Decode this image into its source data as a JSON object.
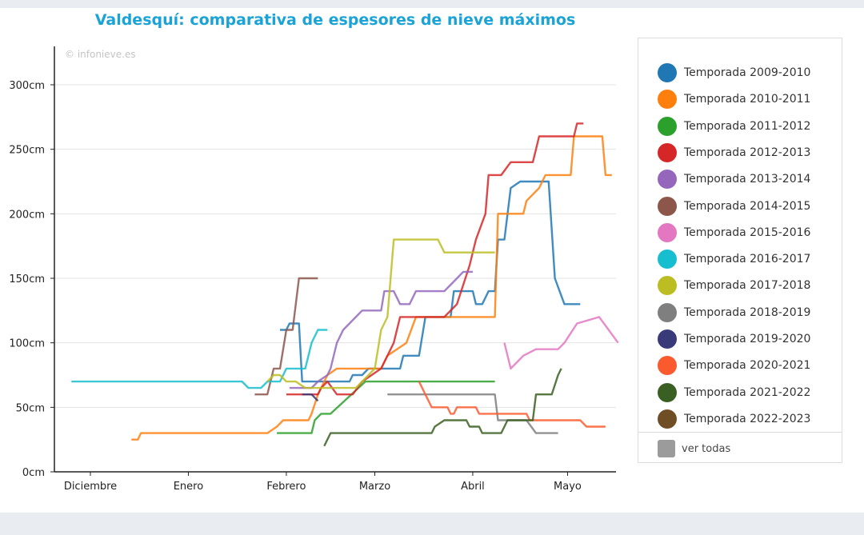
{
  "chart_data": {
    "type": "line",
    "title": "Valdesquí: comparativa de espesores de nieve máximos",
    "watermark": "© infonieve.es",
    "x_tick_labels": [
      "Diciembre",
      "Enero",
      "Febrero",
      "Marzo",
      "Abril",
      "Mayo"
    ],
    "y_tick_labels": [
      "0cm",
      "50cm",
      "100cm",
      "150cm",
      "200cm",
      "250cm",
      "300cm"
    ],
    "ylim": [
      0,
      300
    ],
    "xlim_days": [
      -6,
      150
    ],
    "grid": true,
    "legend_position": "right",
    "show_all_label": "ver todas",
    "series": [
      {
        "name": "Temporada 2009-2010",
        "color": "#1f77b4",
        "points": [
          [
            60,
            110
          ],
          [
            62,
            110
          ],
          [
            63,
            115
          ],
          [
            66,
            115
          ],
          [
            67,
            70
          ],
          [
            82,
            70
          ],
          [
            83,
            75
          ],
          [
            86,
            75
          ],
          [
            88,
            80
          ],
          [
            98,
            80
          ],
          [
            99,
            90
          ],
          [
            104,
            90
          ],
          [
            106,
            120
          ],
          [
            114,
            120
          ],
          [
            115,
            140
          ],
          [
            121,
            140
          ],
          [
            122,
            130
          ],
          [
            124,
            130
          ],
          [
            126,
            140
          ],
          [
            128,
            140
          ],
          [
            129,
            180
          ],
          [
            131,
            180
          ],
          [
            133,
            220
          ],
          [
            136,
            225
          ],
          [
            145,
            225
          ],
          [
            147,
            150
          ],
          [
            150,
            130
          ],
          [
            155,
            130
          ]
        ]
      },
      {
        "name": "Temporada 2010-2011",
        "color": "#ff7f0e",
        "points": [
          [
            13,
            25
          ],
          [
            15,
            25
          ],
          [
            16,
            30
          ],
          [
            56,
            30
          ],
          [
            59,
            35
          ],
          [
            61,
            40
          ],
          [
            69,
            40
          ],
          [
            70,
            45
          ],
          [
            72,
            60
          ],
          [
            75,
            75
          ],
          [
            78,
            80
          ],
          [
            92,
            80
          ],
          [
            94,
            90
          ],
          [
            100,
            100
          ],
          [
            103,
            120
          ],
          [
            128,
            120
          ],
          [
            129,
            200
          ],
          [
            137,
            200
          ],
          [
            138,
            210
          ],
          [
            142,
            220
          ],
          [
            144,
            230
          ],
          [
            152,
            230
          ],
          [
            153,
            260
          ],
          [
            162,
            260
          ],
          [
            163,
            230
          ],
          [
            165,
            230
          ]
        ]
      },
      {
        "name": "Temporada 2011-2012",
        "color": "#2ca02c",
        "points": [
          [
            59,
            30
          ],
          [
            70,
            30
          ],
          [
            71,
            40
          ],
          [
            73,
            45
          ],
          [
            76,
            45
          ],
          [
            87,
            70
          ],
          [
            112,
            70
          ],
          [
            116,
            70
          ],
          [
            128,
            70
          ]
        ]
      },
      {
        "name": "Temporada 2012-2013",
        "color": "#d62728",
        "points": [
          [
            62,
            60
          ],
          [
            72,
            60
          ],
          [
            73,
            65
          ],
          [
            75,
            70
          ],
          [
            78,
            60
          ],
          [
            83,
            60
          ],
          [
            86,
            70
          ],
          [
            92,
            80
          ],
          [
            96,
            100
          ],
          [
            98,
            120
          ],
          [
            112,
            120
          ],
          [
            116,
            130
          ],
          [
            120,
            160
          ],
          [
            122,
            180
          ],
          [
            125,
            200
          ],
          [
            126,
            230
          ],
          [
            130,
            230
          ],
          [
            133,
            240
          ],
          [
            140,
            240
          ],
          [
            141,
            250
          ],
          [
            142,
            260
          ],
          [
            153,
            260
          ],
          [
            154,
            270
          ],
          [
            156,
            270
          ]
        ]
      },
      {
        "name": "Temporada 2013-2014",
        "color": "#9467bd",
        "points": [
          [
            63,
            65
          ],
          [
            70,
            65
          ],
          [
            72,
            70
          ],
          [
            75,
            75
          ],
          [
            76,
            80
          ],
          [
            78,
            100
          ],
          [
            80,
            110
          ],
          [
            84,
            120
          ],
          [
            86,
            125
          ],
          [
            92,
            125
          ],
          [
            93,
            140
          ],
          [
            96,
            140
          ],
          [
            98,
            130
          ],
          [
            101,
            130
          ],
          [
            103,
            140
          ],
          [
            112,
            140
          ],
          [
            116,
            150
          ],
          [
            118,
            155
          ],
          [
            121,
            155
          ]
        ]
      },
      {
        "name": "Temporada 2014-2015",
        "color": "#8c564b",
        "points": [
          [
            52,
            60
          ],
          [
            56,
            60
          ],
          [
            58,
            80
          ],
          [
            60,
            80
          ],
          [
            62,
            110
          ],
          [
            64,
            110
          ],
          [
            66,
            150
          ],
          [
            72,
            150
          ]
        ]
      },
      {
        "name": "Temporada 2015-2016",
        "color": "#e377c2",
        "points": [
          [
            131,
            100
          ],
          [
            133,
            80
          ],
          [
            135,
            85
          ],
          [
            137,
            90
          ],
          [
            141,
            95
          ],
          [
            148,
            95
          ],
          [
            150,
            100
          ],
          [
            154,
            115
          ],
          [
            161,
            120
          ],
          [
            164,
            110
          ],
          [
            167,
            100
          ]
        ]
      },
      {
        "name": "Temporada 2016-2017",
        "color": "#17becf",
        "points": [
          [
            -6,
            70
          ],
          [
            48,
            70
          ],
          [
            50,
            65
          ],
          [
            54,
            65
          ],
          [
            56,
            70
          ],
          [
            60,
            70
          ],
          [
            62,
            80
          ],
          [
            68,
            80
          ],
          [
            70,
            100
          ],
          [
            72,
            110
          ],
          [
            75,
            110
          ]
        ]
      },
      {
        "name": "Temporada 2017-2018",
        "color": "#bcbd22",
        "points": [
          [
            56,
            70
          ],
          [
            58,
            75
          ],
          [
            60,
            75
          ],
          [
            62,
            70
          ],
          [
            65,
            70
          ],
          [
            68,
            65
          ],
          [
            84,
            65
          ],
          [
            86,
            70
          ],
          [
            90,
            80
          ],
          [
            92,
            110
          ],
          [
            94,
            120
          ],
          [
            96,
            180
          ],
          [
            110,
            180
          ],
          [
            112,
            170
          ],
          [
            128,
            170
          ]
        ]
      },
      {
        "name": "Temporada 2018-2019",
        "color": "#7f7f7f",
        "points": [
          [
            94,
            60
          ],
          [
            128,
            60
          ],
          [
            129,
            40
          ],
          [
            138,
            40
          ],
          [
            141,
            30
          ],
          [
            148,
            30
          ]
        ]
      },
      {
        "name": "Temporada 2019-2020",
        "color": "#393b79",
        "points": [
          [
            67,
            60
          ],
          [
            70,
            60
          ],
          [
            72,
            55
          ]
        ]
      },
      {
        "name": "Temporada 2020-2021",
        "color": "#fb5a2f",
        "points": [
          [
            104,
            70
          ],
          [
            106,
            60
          ],
          [
            108,
            50
          ],
          [
            113,
            50
          ],
          [
            114,
            45
          ],
          [
            115,
            45
          ],
          [
            116,
            50
          ],
          [
            122,
            50
          ],
          [
            123,
            45
          ],
          [
            138,
            45
          ],
          [
            139,
            40
          ],
          [
            155,
            40
          ],
          [
            157,
            35
          ],
          [
            163,
            35
          ]
        ]
      },
      {
        "name": "Temporada 2021-2022",
        "color": "#3a5f22",
        "points": [
          [
            74,
            20
          ],
          [
            76,
            30
          ],
          [
            108,
            30
          ],
          [
            109,
            35
          ],
          [
            112,
            40
          ],
          [
            119,
            40
          ],
          [
            120,
            35
          ],
          [
            123,
            35
          ],
          [
            124,
            30
          ],
          [
            130,
            30
          ],
          [
            132,
            40
          ],
          [
            140,
            40
          ],
          [
            141,
            60
          ],
          [
            146,
            60
          ],
          [
            148,
            75
          ],
          [
            149,
            80
          ]
        ]
      },
      {
        "name": "Temporada 2022-2023",
        "color": "#6f4e26",
        "points": []
      }
    ]
  }
}
